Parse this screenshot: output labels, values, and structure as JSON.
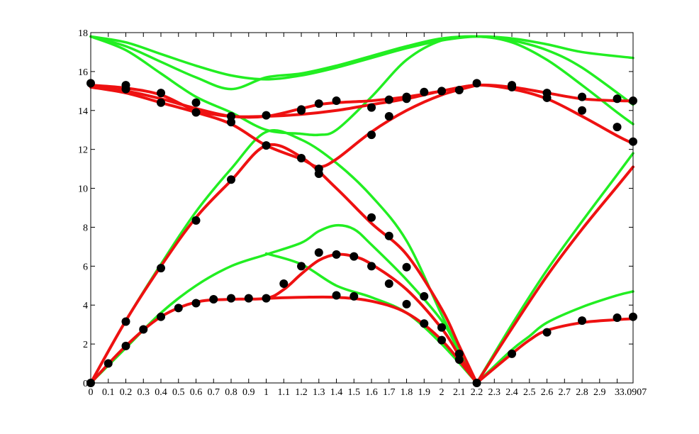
{
  "chart_data": {
    "type": "line",
    "title": "",
    "xlabel": "",
    "ylabel": "",
    "xlim": [
      0,
      3.0907
    ],
    "ylim": [
      0,
      18
    ],
    "grid": false,
    "legend": "none",
    "x_ticks": [
      0,
      0.1,
      0.2,
      0.3,
      0.4,
      0.5,
      0.6,
      0.7,
      0.8,
      0.9,
      1,
      1.1,
      1.2,
      1.3,
      1.4,
      1.5,
      1.6,
      1.7,
      1.8,
      1.9,
      2,
      2.1,
      2.2,
      2.3,
      2.4,
      2.5,
      2.6,
      2.7,
      2.8,
      2.9,
      3,
      3.0907
    ],
    "x_tick_labels": [
      "0",
      "0.1",
      "0.2",
      "0.3",
      "0.4",
      "0.5",
      "0.6",
      "0.7",
      "0.8",
      "0.9",
      "1",
      "1.1",
      "1.2",
      "1.3",
      "1.4",
      "1.5",
      "1.6",
      "1.7",
      "1.8",
      "1.9",
      "2",
      "2.1",
      "2.2",
      "2.3",
      "2.4",
      "2.5",
      "2.6",
      "2.7",
      "2.8",
      "2.9",
      "3",
      "3.0907"
    ],
    "y_ticks": [
      0,
      2,
      4,
      6,
      8,
      10,
      12,
      14,
      16,
      18
    ],
    "y_tick_labels": [
      "0",
      "2",
      "4",
      "6",
      "8",
      "10",
      "12",
      "14",
      "16",
      "18"
    ],
    "colors": {
      "green": "#22ee22",
      "red": "#ee1111",
      "points": "#000000",
      "axis": "#000000"
    },
    "series": [
      {
        "color": "green",
        "style": "line",
        "x": [
          0,
          0.2,
          0.4,
          0.6,
          0.8,
          1.0,
          1.2,
          1.4,
          1.6,
          1.8,
          2.0,
          2.2,
          2.4,
          2.6,
          2.8,
          3.0907
        ],
        "y": [
          17.8,
          17.5,
          16.9,
          16.3,
          15.8,
          15.6,
          15.8,
          16.2,
          16.7,
          17.2,
          17.6,
          17.8,
          17.7,
          17.4,
          17.0,
          16.7
        ]
      },
      {
        "color": "green",
        "style": "line",
        "x": [
          0,
          0.2,
          0.4,
          0.6,
          0.8,
          1.0,
          1.2,
          1.4,
          1.6,
          1.8,
          2.0,
          2.2,
          2.4,
          2.6,
          2.8,
          3.0907
        ],
        "y": [
          17.8,
          17.3,
          16.5,
          15.7,
          15.1,
          15.7,
          15.9,
          16.3,
          16.8,
          17.3,
          17.7,
          17.8,
          17.6,
          17.1,
          16.2,
          14.3
        ]
      },
      {
        "color": "green",
        "style": "line",
        "x": [
          0,
          0.2,
          0.4,
          0.6,
          0.8,
          1.0,
          1.2,
          1.3,
          1.4,
          1.6,
          1.8,
          2.0,
          2.2,
          2.4,
          2.6,
          2.8,
          3.0,
          3.0907
        ],
        "y": [
          17.8,
          17.1,
          15.9,
          14.7,
          13.9,
          13.0,
          12.8,
          12.75,
          13.0,
          14.7,
          16.6,
          17.6,
          17.8,
          17.5,
          16.6,
          15.3,
          13.9,
          13.3
        ]
      },
      {
        "color": "green",
        "style": "line",
        "x": [
          0,
          0.2,
          0.4,
          0.6,
          0.8,
          1.0,
          1.2,
          1.4,
          1.6,
          1.8,
          2.0,
          2.1,
          2.2
        ],
        "y": [
          0,
          3.2,
          6.1,
          8.8,
          11.0,
          12.9,
          12.5,
          11.3,
          9.6,
          7.3,
          3.5,
          1.7,
          0
        ]
      },
      {
        "color": "green",
        "style": "line",
        "x": [
          0,
          0.2,
          0.4,
          0.6,
          0.8,
          1.0,
          1.2,
          1.3,
          1.4,
          1.5,
          1.6,
          1.8,
          2.0,
          2.1,
          2.2
        ],
        "y": [
          0,
          1.8,
          3.6,
          5.0,
          6.0,
          6.6,
          7.2,
          7.8,
          8.1,
          7.9,
          7.1,
          5.3,
          3.2,
          1.6,
          0
        ]
      },
      {
        "color": "green",
        "style": "line",
        "x": [
          1.0,
          1.2,
          1.4,
          1.6,
          1.8,
          2.0,
          2.2
        ],
        "y": [
          6.65,
          6.1,
          5.0,
          4.4,
          3.6,
          2.0,
          0
        ]
      },
      {
        "color": "green",
        "style": "line",
        "x": [
          2.2,
          2.4,
          2.6,
          2.8,
          3.0,
          3.0907
        ],
        "y": [
          0,
          3.0,
          5.8,
          8.3,
          10.7,
          11.8
        ]
      },
      {
        "color": "green",
        "style": "line",
        "x": [
          2.2,
          2.4,
          2.5,
          2.6,
          2.8,
          3.0,
          3.0907
        ],
        "y": [
          0,
          1.7,
          2.4,
          3.1,
          3.9,
          4.5,
          4.7
        ]
      },
      {
        "color": "red",
        "style": "line",
        "x": [
          0,
          0.2,
          0.4,
          0.6,
          0.8,
          1.0,
          1.2,
          1.4,
          1.6,
          1.8,
          2.0,
          2.2,
          2.4,
          2.6,
          2.8,
          3.0,
          3.0907
        ],
        "y": [
          15.3,
          15.15,
          14.8,
          14.0,
          13.7,
          13.7,
          13.8,
          14.0,
          14.3,
          14.6,
          15.0,
          15.3,
          15.2,
          14.9,
          14.6,
          14.5,
          14.5
        ]
      },
      {
        "color": "red",
        "style": "line",
        "x": [
          0,
          0.2,
          0.4,
          0.6,
          0.8,
          1.0,
          1.2,
          1.3,
          1.4,
          1.6,
          1.8,
          2.0,
          2.2,
          2.4,
          2.6,
          2.8,
          3.0,
          3.0907
        ],
        "y": [
          15.2,
          15.0,
          14.6,
          14.1,
          13.7,
          13.7,
          14.1,
          14.3,
          14.4,
          14.5,
          14.7,
          15.0,
          15.3,
          15.1,
          14.6,
          13.7,
          12.7,
          12.3
        ]
      },
      {
        "color": "red",
        "style": "line",
        "x": [
          0,
          0.2,
          0.4,
          0.6,
          0.8,
          1.0,
          1.2,
          1.3,
          1.4,
          1.6,
          1.8,
          2.0,
          2.2
        ],
        "y": [
          15.2,
          14.9,
          14.4,
          13.9,
          13.3,
          12.2,
          11.5,
          11.1,
          11.5,
          12.9,
          14.0,
          14.8,
          15.3
        ]
      },
      {
        "color": "red",
        "style": "line",
        "x": [
          0,
          0.2,
          0.4,
          0.6,
          0.8,
          1.0,
          1.2,
          1.4,
          1.6,
          1.8,
          2.0,
          2.1,
          2.2
        ],
        "y": [
          0,
          3.2,
          6.0,
          8.5,
          10.4,
          12.2,
          11.6,
          10.0,
          8.2,
          6.6,
          3.8,
          1.9,
          0
        ]
      },
      {
        "color": "red",
        "style": "line",
        "x": [
          0,
          0.2,
          0.4,
          0.6,
          0.8,
          1.0,
          1.1,
          1.2,
          1.3,
          1.4,
          1.5,
          1.6,
          1.8,
          2.0,
          2.1,
          2.2
        ],
        "y": [
          0,
          1.9,
          3.4,
          4.15,
          4.3,
          4.35,
          4.8,
          5.6,
          6.3,
          6.6,
          6.5,
          6.1,
          4.8,
          2.8,
          1.4,
          0
        ]
      },
      {
        "color": "red",
        "style": "line",
        "x": [
          1.0,
          1.2,
          1.4,
          1.6,
          1.8,
          2.0,
          2.2
        ],
        "y": [
          4.35,
          4.4,
          4.4,
          4.2,
          3.6,
          2.2,
          0
        ]
      },
      {
        "color": "red",
        "style": "line",
        "x": [
          2.2,
          2.4,
          2.6,
          2.8,
          3.0,
          3.0907
        ],
        "y": [
          0,
          2.8,
          5.5,
          7.9,
          10.1,
          11.1
        ]
      },
      {
        "color": "red",
        "style": "line",
        "x": [
          2.2,
          2.4,
          2.5,
          2.6,
          2.8,
          3.0,
          3.0907
        ],
        "y": [
          0,
          1.5,
          2.2,
          2.7,
          3.1,
          3.25,
          3.3
        ]
      },
      {
        "color": "points",
        "style": "scatter",
        "x": [
          0,
          0.2,
          0.4,
          0.6,
          0.8,
          1.0,
          1.1,
          1.2,
          1.3,
          1.4,
          1.5,
          1.6,
          1.7,
          1.8,
          1.9,
          2.0,
          2.1,
          2.2,
          2.4,
          2.6,
          2.8,
          3.0,
          3.0907,
          0,
          0.2,
          0.4,
          0.6,
          0.8,
          1.0,
          1.2,
          1.3,
          1.6,
          1.7,
          1.8,
          1.9,
          2.0,
          2.1,
          2.2,
          2.4,
          2.6,
          2.8,
          3.0,
          3.0907,
          0.1,
          0.2,
          0.3,
          0.4,
          0.5,
          0.6,
          0.7,
          0.8,
          0.9,
          1.0,
          1.2,
          1.3,
          1.4,
          1.5,
          1.6,
          1.7,
          1.8,
          1.9,
          2.0,
          2.1,
          0.2,
          0.4,
          0.6,
          0.8,
          1.2,
          1.3,
          1.4,
          1.6,
          1.7,
          1.8,
          2.4,
          2.6,
          2.8,
          3.0,
          3.0907
        ],
        "y": [
          0,
          1.9,
          3.4,
          4.1,
          4.35,
          4.35,
          5.1,
          6.0,
          6.7,
          6.6,
          6.5,
          6.0,
          5.1,
          4.05,
          3.05,
          2.2,
          1.2,
          0,
          1.5,
          2.6,
          3.2,
          3.35,
          3.4,
          15.4,
          15.3,
          14.9,
          14.4,
          13.7,
          13.75,
          14.0,
          14.35,
          14.15,
          14.55,
          14.7,
          14.95,
          15.0,
          15.05,
          15.4,
          15.3,
          14.9,
          14.7,
          14.6,
          14.5,
          1.0,
          3.15,
          2.75,
          5.9,
          3.85,
          8.35,
          4.3,
          10.45,
          4.35,
          12.2,
          11.55,
          10.75,
          4.5,
          4.45,
          8.5,
          7.55,
          5.95,
          4.45,
          2.85,
          1.5,
          15.1,
          14.4,
          13.9,
          13.4,
          14.05,
          11.0,
          14.5,
          12.75,
          13.7,
          14.6,
          15.2,
          14.65,
          14.0,
          13.15,
          12.4
        ]
      }
    ]
  }
}
